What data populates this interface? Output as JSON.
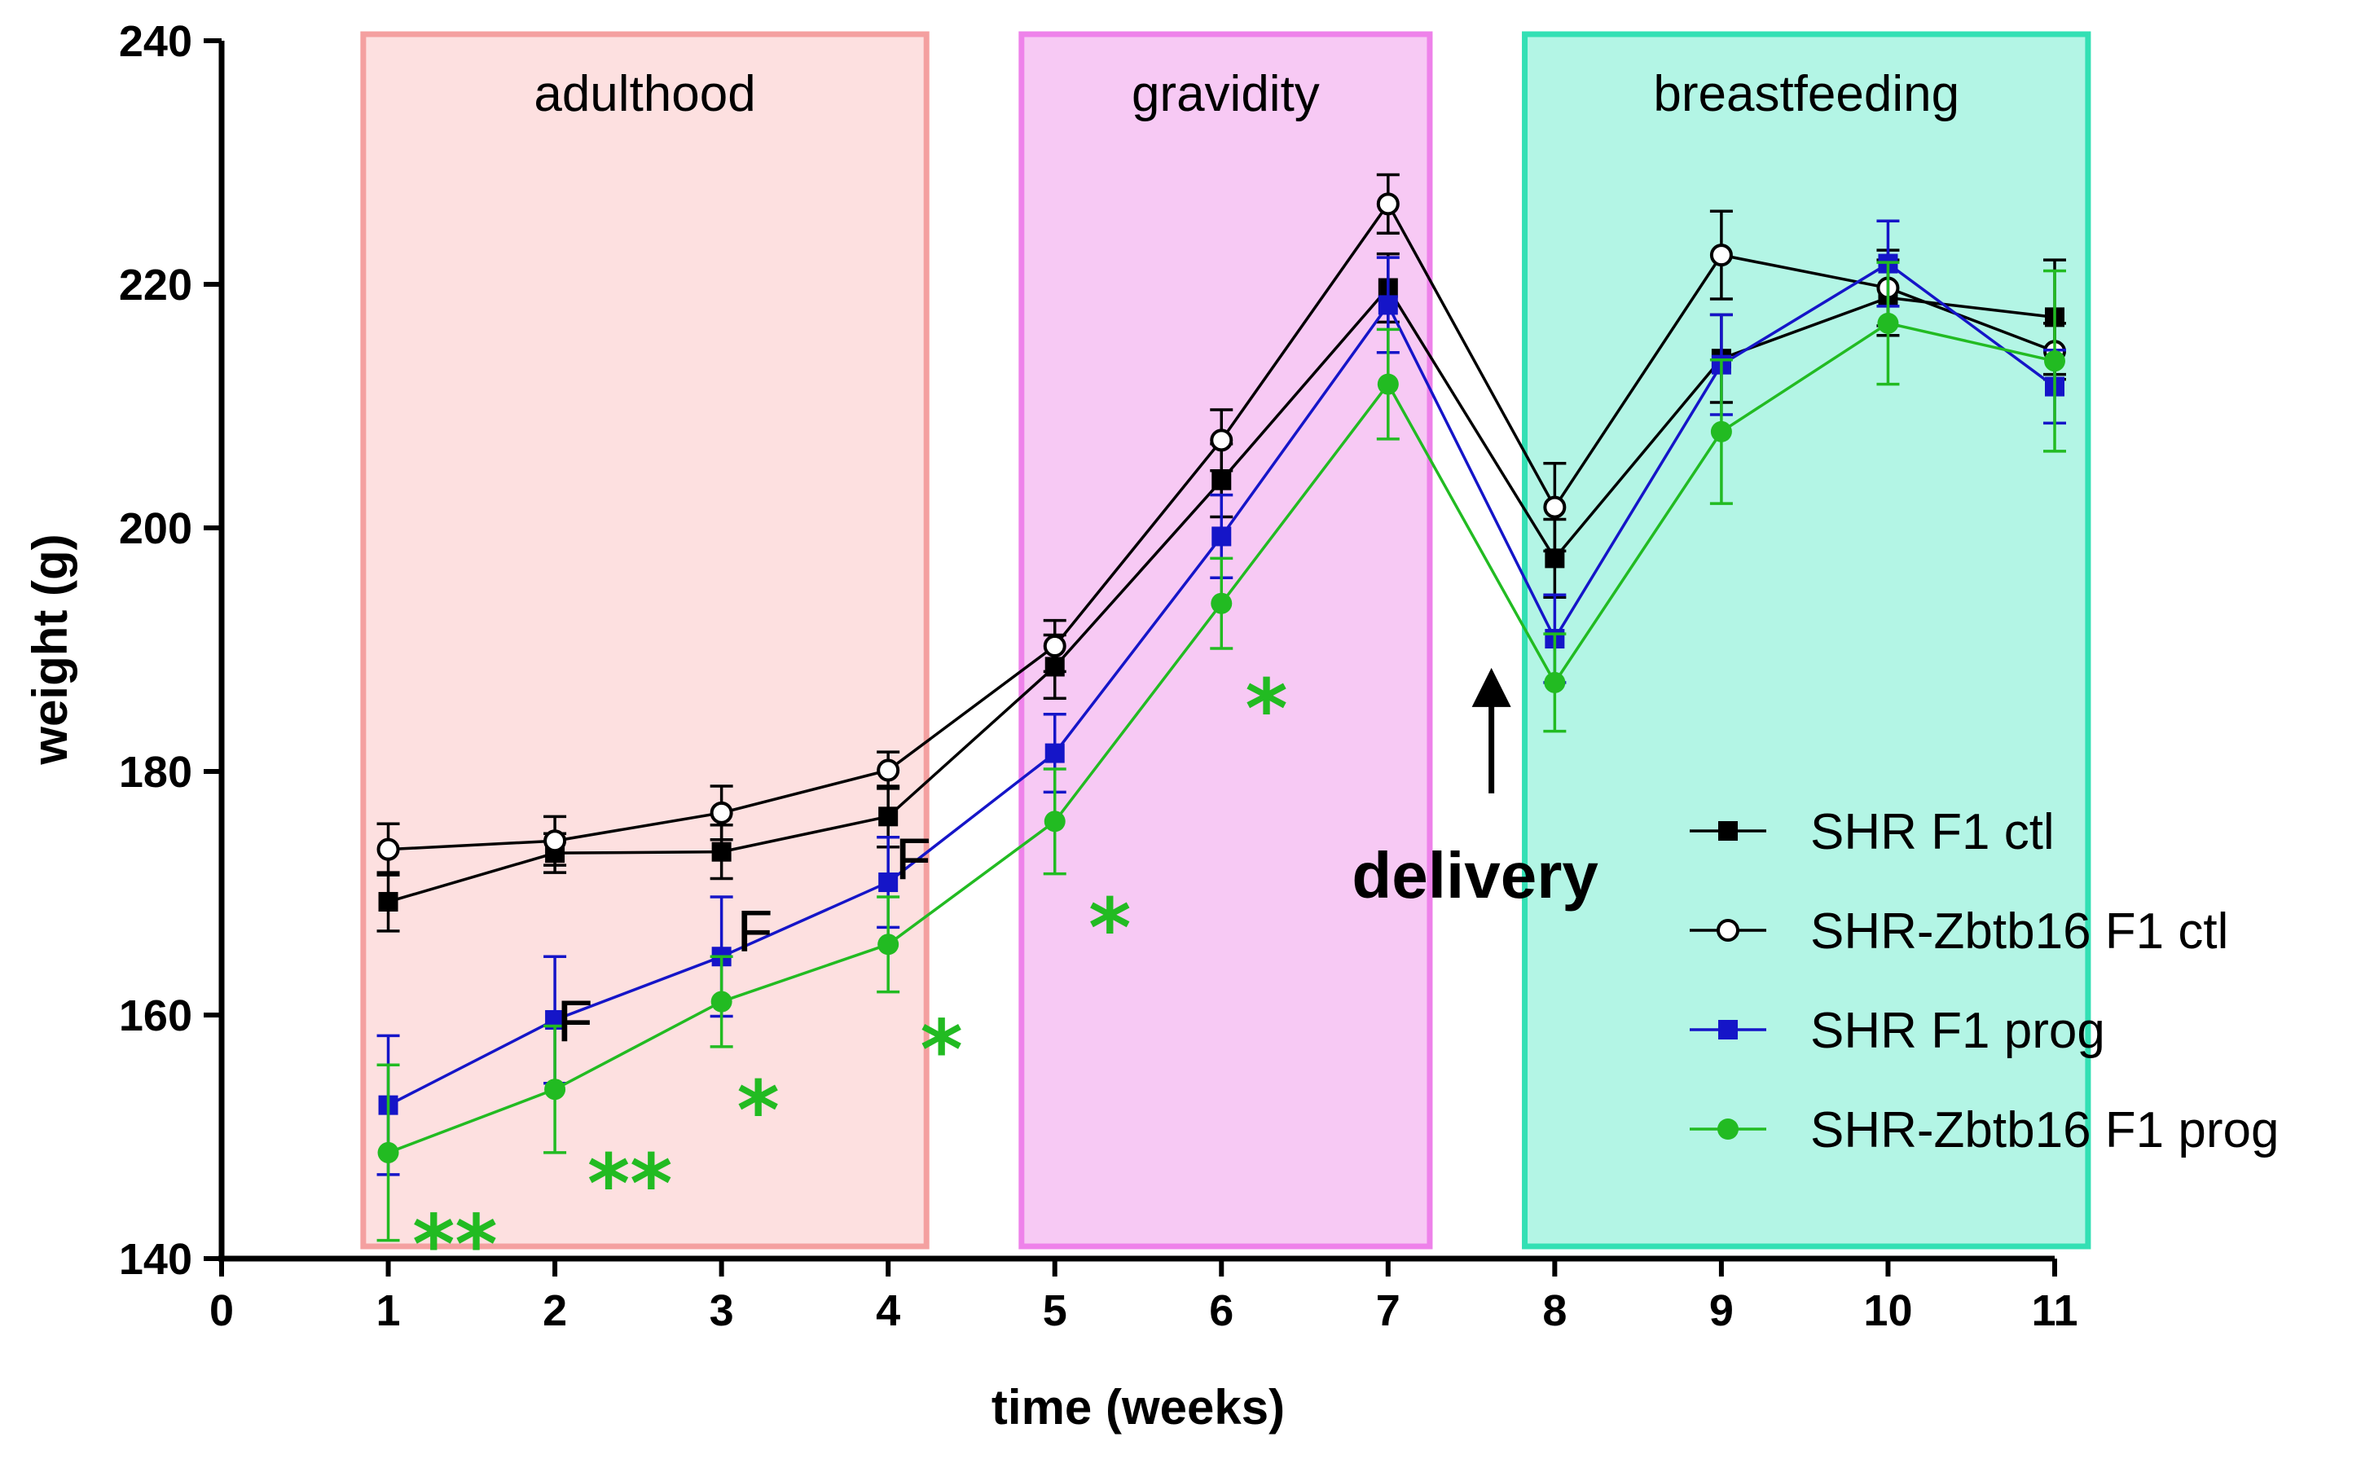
{
  "chart_data": {
    "type": "line",
    "title": "",
    "xlabel": "time (weeks)",
    "ylabel": "weight (g)",
    "xlim": [
      0,
      11
    ],
    "ylim": [
      140,
      240
    ],
    "x_ticks": [
      "0",
      "1",
      "2",
      "3",
      "4",
      "5",
      "6",
      "7",
      "8",
      "9",
      "10",
      "11"
    ],
    "y_ticks": [
      "140",
      "160",
      "180",
      "200",
      "220",
      "240"
    ],
    "grid": false,
    "legend_position": "bottom-right",
    "x": [
      1,
      2,
      3,
      4,
      5,
      6,
      7,
      8,
      9,
      10,
      11
    ],
    "series": [
      {
        "name": "SHR F1 ctl",
        "color": "#000000",
        "marker": "square-filled",
        "values": [
          169.3,
          173.3,
          173.4,
          176.3,
          188.6,
          203.9,
          219.7,
          197.5,
          213.9,
          218.9,
          217.3
        ],
        "errors": [
          2.4,
          1.6,
          2.2,
          2.5,
          2.6,
          3.0,
          2.8,
          3.2,
          3.6,
          3.1,
          4.7
        ]
      },
      {
        "name": "SHR-Zbtb16 F1 ctl",
        "color": "#000000",
        "marker": "circle-open",
        "values": [
          173.6,
          174.3,
          176.6,
          180.1,
          190.3,
          207.2,
          226.6,
          201.7,
          222.4,
          219.7,
          214.5
        ],
        "errors": [
          2.1,
          2.0,
          2.2,
          1.5,
          2.1,
          2.5,
          2.4,
          3.6,
          3.6,
          3.1,
          2.3
        ]
      },
      {
        "name": "SHR F1 prog",
        "color": "#1515c8",
        "marker": "square-filled",
        "values": [
          152.6,
          159.6,
          164.8,
          170.9,
          181.5,
          199.3,
          218.3,
          190.9,
          213.4,
          221.7,
          211.6
        ],
        "errors": [
          5.7,
          5.2,
          4.9,
          3.7,
          3.2,
          3.4,
          3.9,
          3.6,
          4.1,
          3.5,
          3.0
        ]
      },
      {
        "name": "SHR-Zbtb16 F1 prog",
        "color": "#22bb22",
        "marker": "circle-filled",
        "values": [
          148.7,
          153.9,
          161.1,
          165.8,
          175.9,
          193.8,
          211.8,
          187.3,
          207.9,
          216.8,
          213.7
        ],
        "errors": [
          7.2,
          5.2,
          3.7,
          3.9,
          4.3,
          3.7,
          4.5,
          4.0,
          5.9,
          5.0,
          7.4
        ]
      }
    ],
    "regions": [
      {
        "label": "adulthood",
        "x_start": 0.85,
        "x_end": 4.23,
        "fill": "#fde0e0",
        "stroke": "#f4a0a0"
      },
      {
        "label": "gravidity",
        "x_start": 4.8,
        "x_end": 7.25,
        "fill": "#f7c9f4",
        "stroke": "#ee82ea"
      },
      {
        "label": "breastfeeding",
        "x_start": 7.82,
        "x_end": 11.2,
        "fill": "#b3f5e5",
        "stroke": "#33e0b4"
      }
    ],
    "annotations": [
      {
        "text": "F",
        "kind": "f",
        "x": 2.12,
        "y": 159.6
      },
      {
        "text": "F",
        "kind": "f",
        "x": 3.2,
        "y": 167.0
      },
      {
        "text": "F",
        "kind": "f",
        "x": 4.15,
        "y": 172.9
      },
      {
        "text": "**",
        "kind": "star",
        "x": 1.4,
        "y": 141.5
      },
      {
        "text": "**",
        "kind": "star",
        "x": 2.45,
        "y": 146.5
      },
      {
        "text": "*",
        "kind": "star",
        "x": 3.22,
        "y": 152.5
      },
      {
        "text": "*",
        "kind": "star",
        "x": 4.32,
        "y": 157.5
      },
      {
        "text": "*",
        "kind": "star",
        "x": 5.33,
        "y": 167.5
      },
      {
        "text": "*",
        "kind": "star",
        "x": 6.27,
        "y": 185.5
      }
    ],
    "delivery": {
      "label": "delivery",
      "x": 7.62,
      "y_from": 178.2,
      "y_to": 188.5
    }
  }
}
